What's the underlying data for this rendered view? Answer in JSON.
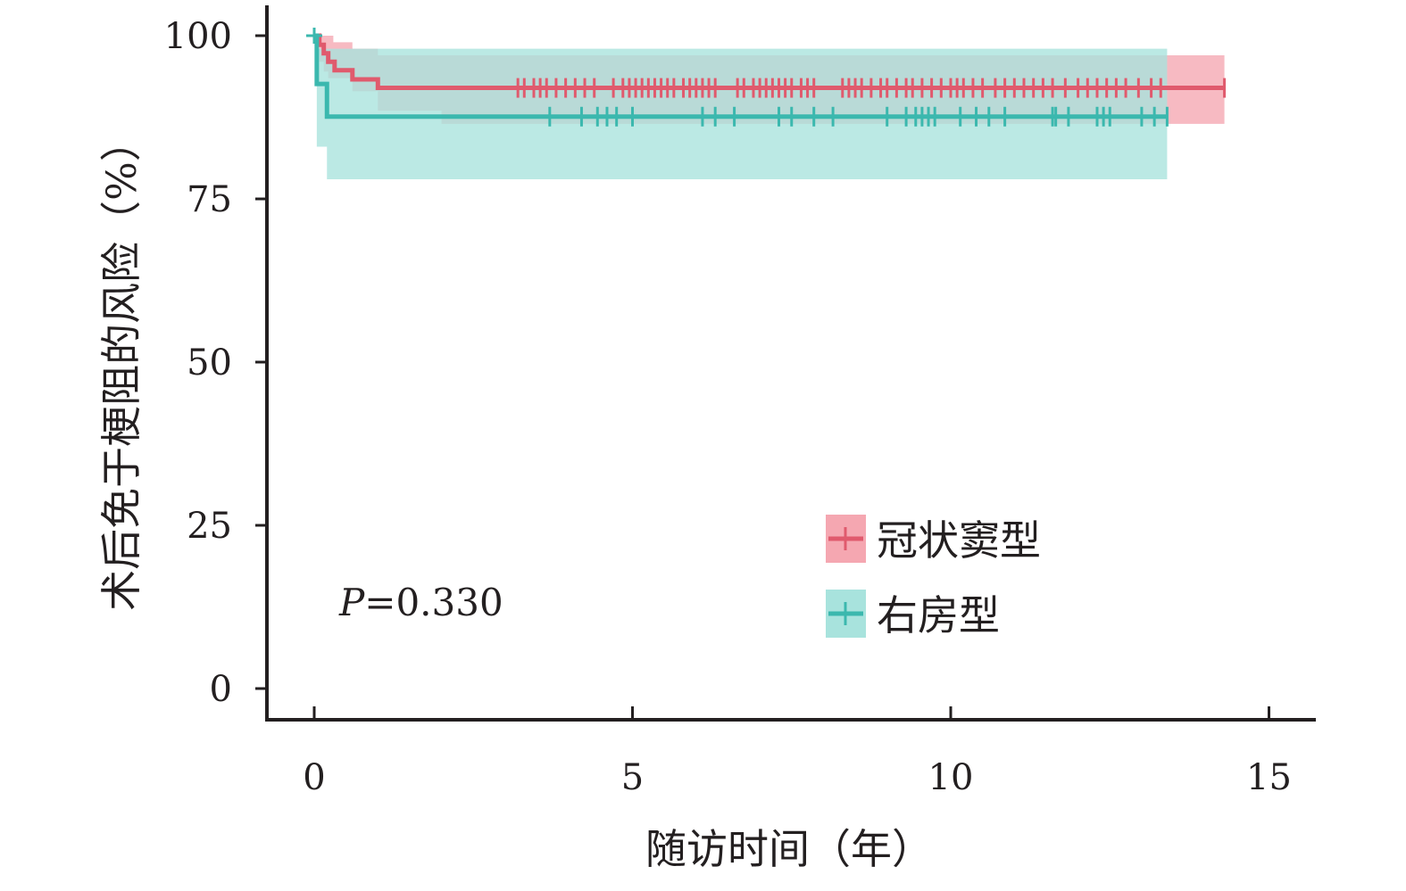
{
  "chart_data": {
    "type": "line",
    "subtype": "kaplan-meier",
    "xlabel": "随访时间（年）",
    "ylabel": "术后免于梗阻的风险（%）",
    "xlim": [
      -0.8,
      15.7
    ],
    "ylim": [
      -5,
      105
    ],
    "xticks": [
      0,
      5,
      10,
      15
    ],
    "yticks": [
      0,
      25,
      50,
      75,
      100
    ],
    "grid": false,
    "legend_position": "bottom-right",
    "annotation": {
      "p_label": "P",
      "p_value": "=0.330"
    },
    "series": [
      {
        "name": "冠状窦型",
        "color": "#e05a6d",
        "band_color": "#f5a7b1",
        "steps": [
          [
            0,
            100
          ],
          [
            0.08,
            98.6
          ],
          [
            0.15,
            97.3
          ],
          [
            0.22,
            96.0
          ],
          [
            0.32,
            94.7
          ],
          [
            0.6,
            93.3
          ],
          [
            1.0,
            92.0
          ]
        ],
        "x_end": 14.3,
        "ci": [
          [
            0,
            100,
            100
          ],
          [
            0.08,
            96,
            100
          ],
          [
            0.15,
            94.5,
            100
          ],
          [
            0.22,
            93.5,
            100
          ],
          [
            0.3,
            93.5,
            99
          ],
          [
            0.6,
            91.5,
            98
          ],
          [
            1.0,
            88.5,
            97
          ],
          [
            2.0,
            86.5,
            97
          ],
          [
            13.5,
            86.5,
            97
          ],
          [
            14.3,
            86.5,
            97
          ]
        ],
        "censored": [
          3.2,
          3.3,
          3.45,
          3.55,
          3.65,
          3.8,
          3.95,
          4.1,
          4.25,
          4.4,
          4.7,
          4.85,
          4.95,
          5.05,
          5.15,
          5.25,
          5.35,
          5.45,
          5.55,
          5.65,
          5.8,
          5.9,
          6.0,
          6.1,
          6.2,
          6.3,
          6.65,
          6.75,
          6.9,
          7.0,
          7.1,
          7.2,
          7.3,
          7.4,
          7.5,
          7.65,
          7.75,
          7.85,
          8.3,
          8.4,
          8.5,
          8.6,
          8.75,
          8.9,
          9.0,
          9.15,
          9.3,
          9.4,
          9.55,
          9.7,
          9.85,
          10.0,
          10.1,
          10.2,
          10.35,
          10.5,
          10.7,
          10.85,
          11.0,
          11.15,
          11.3,
          11.45,
          11.6,
          11.8,
          12.0,
          12.15,
          12.3,
          12.45,
          12.6,
          12.75,
          12.95,
          13.15,
          13.3,
          14.3
        ]
      },
      {
        "name": "右房型",
        "color": "#3bb8ae",
        "band_color": "#a8e3dd",
        "steps": [
          [
            0,
            100
          ],
          [
            0.04,
            92.6
          ],
          [
            0.2,
            87.6
          ]
        ],
        "x_end": 13.4,
        "ci": [
          [
            0,
            100,
            100
          ],
          [
            0.04,
            83,
            98
          ],
          [
            0.2,
            78,
            98
          ],
          [
            13.4,
            78,
            98
          ]
        ],
        "censored": [
          3.7,
          4.2,
          4.45,
          4.6,
          4.75,
          5.0,
          6.1,
          6.3,
          6.6,
          7.3,
          7.5,
          7.85,
          8.15,
          9.0,
          9.3,
          9.45,
          9.55,
          9.65,
          9.75,
          10.15,
          10.4,
          10.6,
          10.85,
          11.6,
          11.65,
          11.85,
          12.3,
          12.4,
          12.5,
          13.0,
          13.2,
          13.4
        ]
      }
    ]
  }
}
